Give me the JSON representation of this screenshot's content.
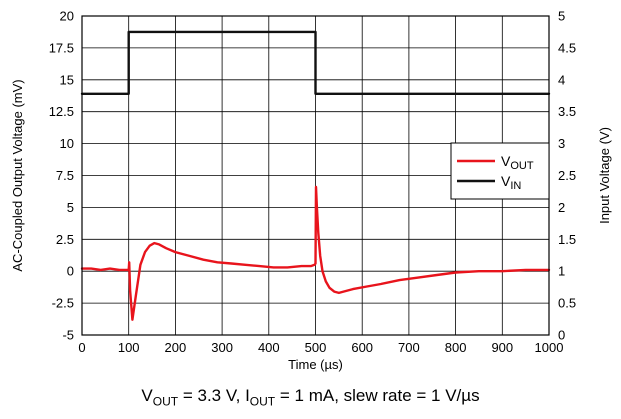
{
  "chart_data": {
    "type": "line",
    "xlabel": "Time (µs)",
    "ylabel_left": "AC-Coupled Output Voltage (mV)",
    "ylabel_right": "Input Voltage (V)",
    "xlim": [
      0,
      1000
    ],
    "ylim_left": [
      -5,
      20
    ],
    "ylim_right": [
      0,
      5
    ],
    "x_ticks": [
      "0",
      "100",
      "200",
      "300",
      "400",
      "500",
      "600",
      "700",
      "800",
      "900",
      "1000"
    ],
    "y_left_ticks": [
      "-5",
      "-2.5",
      "0",
      "2.5",
      "5",
      "7.5",
      "10",
      "12.5",
      "15",
      "17.5",
      "20"
    ],
    "y_right_ticks": [
      "0",
      "0.5",
      "1",
      "1.5",
      "2",
      "2.5",
      "3",
      "3.5",
      "4",
      "4.5",
      "5"
    ],
    "grid": true,
    "legend_position": "right-middle",
    "series": [
      {
        "name": "VOUT",
        "legend_main": "V",
        "legend_sub": "OUT",
        "color": "#e8141c",
        "axis": "left",
        "x": [
          0,
          20,
          40,
          60,
          80,
          100,
          101,
          103,
          108,
          115,
          125,
          135,
          145,
          155,
          165,
          180,
          200,
          230,
          260,
          290,
          320,
          350,
          380,
          410,
          440,
          470,
          490,
          498,
          500,
          501,
          503,
          506,
          510,
          515,
          522,
          530,
          540,
          550,
          560,
          580,
          610,
          640,
          680,
          720,
          760,
          800,
          850,
          900,
          950,
          1000
        ],
        "y": [
          0.2,
          0.2,
          0.1,
          0.2,
          0.1,
          0.1,
          0.7,
          -1.5,
          -3.8,
          -2.0,
          0.5,
          1.5,
          2.0,
          2.2,
          2.1,
          1.8,
          1.5,
          1.2,
          0.9,
          0.7,
          0.6,
          0.5,
          0.4,
          0.3,
          0.3,
          0.4,
          0.4,
          0.5,
          0.6,
          6.6,
          5.0,
          3.0,
          1.2,
          0.0,
          -0.8,
          -1.3,
          -1.6,
          -1.7,
          -1.6,
          -1.4,
          -1.2,
          -1.0,
          -0.7,
          -0.5,
          -0.3,
          -0.1,
          0.0,
          0.0,
          0.1,
          0.1
        ]
      },
      {
        "name": "VIN",
        "legend_main": "V",
        "legend_sub": "IN",
        "color": "#111111",
        "axis": "right",
        "x": [
          0,
          100,
          100,
          500,
          500,
          1000
        ],
        "y": [
          3.78,
          3.78,
          4.75,
          4.75,
          3.78,
          3.78
        ]
      }
    ]
  },
  "caption": {
    "v_main": "V",
    "v_sub": "OUT",
    "v_rest": " = 3.3 V, I",
    "i_sub": "OUT",
    "i_rest": " = 1 mA, slew rate = 1 V/µs"
  }
}
